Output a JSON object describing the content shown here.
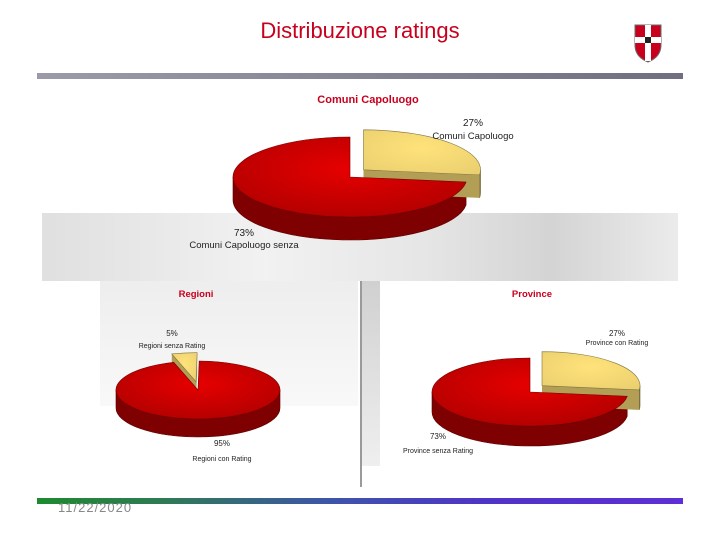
{
  "slide": {
    "title": "Distribuzione ratings",
    "date": "11/22/2020"
  },
  "colors": {
    "title": "#c8001e",
    "slice_major": "#e60000",
    "slice_minor": "#ffe27a"
  },
  "chart_data": [
    {
      "type": "pie",
      "title": "Comuni Capoluogo",
      "style": "3d-exploded",
      "slices": [
        {
          "label": "Comuni Capoluogo",
          "value": 27,
          "value_label": "27%",
          "color": "#ffe27a"
        },
        {
          "label": "Comuni Capoluogo senza",
          "value": 73,
          "value_label": "73%",
          "color": "#e60000"
        }
      ]
    },
    {
      "type": "pie",
      "title": "Regioni",
      "style": "3d-exploded",
      "slices": [
        {
          "label": "Regioni senza Rating",
          "value": 5,
          "value_label": "5%",
          "color": "#ffe27a"
        },
        {
          "label": "Regioni con Rating",
          "value": 95,
          "value_label": "95%",
          "color": "#e60000"
        }
      ]
    },
    {
      "type": "pie",
      "title": "Province",
      "style": "3d-exploded",
      "slices": [
        {
          "label": "Province con Rating",
          "value": 27,
          "value_label": "27%",
          "color": "#ffe27a"
        },
        {
          "label": "Province senza Rating",
          "value": 73,
          "value_label": "73%",
          "color": "#e60000"
        }
      ]
    }
  ]
}
